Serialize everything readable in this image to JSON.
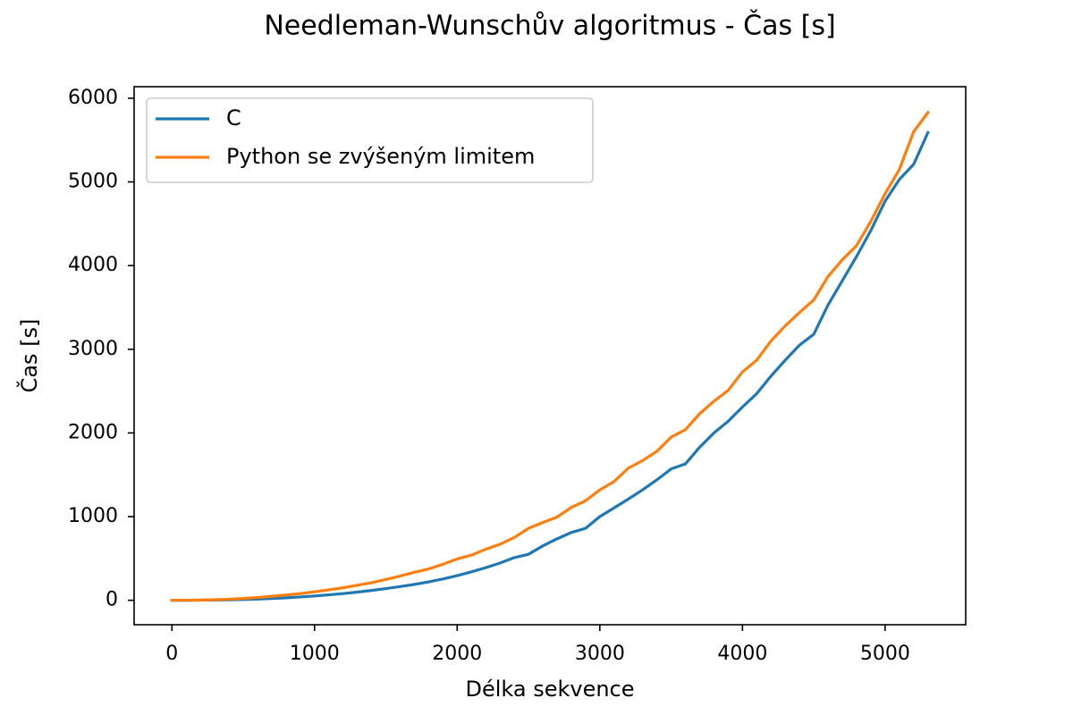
{
  "chart_data": {
    "type": "line",
    "title": "Needleman-Wunschův algoritmus - Čas [s]",
    "xlabel": "Délka sekvence",
    "ylabel": "Čas [s]",
    "xlim": [
      -265,
      5565
    ],
    "ylim": [
      -292,
      6138
    ],
    "xticks": [
      0,
      1000,
      2000,
      3000,
      4000,
      5000
    ],
    "yticks": [
      0,
      1000,
      2000,
      3000,
      4000,
      5000,
      6000
    ],
    "grid": false,
    "legend_position": "upper left",
    "series": [
      {
        "name": "C",
        "color": "#1f77b4",
        "x": [
          0,
          100,
          200,
          300,
          400,
          500,
          600,
          700,
          800,
          900,
          1000,
          1100,
          1200,
          1300,
          1400,
          1500,
          1600,
          1700,
          1800,
          1900,
          2000,
          2100,
          2200,
          2300,
          2400,
          2500,
          2600,
          2700,
          2800,
          2900,
          3000,
          3100,
          3200,
          3300,
          3400,
          3500,
          3600,
          3700,
          3800,
          3900,
          4000,
          4100,
          4200,
          4300,
          4400,
          4500,
          4600,
          4700,
          4800,
          4900,
          5000,
          5100,
          5200,
          5300
        ],
        "y": [
          0,
          0,
          1,
          3,
          5,
          10,
          15,
          22,
          30,
          40,
          52,
          65,
          80,
          98,
          118,
          140,
          164,
          190,
          220,
          255,
          295,
          340,
          390,
          445,
          510,
          550,
          650,
          735,
          810,
          860,
          1000,
          1105,
          1210,
          1320,
          1440,
          1570,
          1630,
          1830,
          2000,
          2140,
          2310,
          2470,
          2680,
          2870,
          3050,
          3180,
          3530,
          3820,
          4110,
          4420,
          4770,
          5030,
          5210,
          5590
        ]
      },
      {
        "name": "Python se zvýšeným limitem",
        "color": "#ff7f0e",
        "x": [
          0,
          100,
          200,
          300,
          400,
          500,
          600,
          700,
          800,
          900,
          1000,
          1100,
          1200,
          1300,
          1400,
          1500,
          1600,
          1700,
          1800,
          1900,
          2000,
          2100,
          2200,
          2300,
          2400,
          2500,
          2600,
          2700,
          2800,
          2900,
          3000,
          3100,
          3200,
          3300,
          3400,
          3500,
          3600,
          3700,
          3800,
          3900,
          4000,
          4100,
          4200,
          4300,
          4400,
          4500,
          4600,
          4700,
          4800,
          4900,
          5000,
          5100,
          5200,
          5300
        ],
        "y": [
          0,
          1,
          3,
          7,
          13,
          22,
          33,
          47,
          63,
          80,
          102,
          125,
          150,
          180,
          210,
          250,
          290,
          335,
          375,
          430,
          495,
          540,
          610,
          670,
          750,
          860,
          930,
          995,
          1110,
          1190,
          1320,
          1420,
          1580,
          1670,
          1780,
          1950,
          2040,
          2230,
          2380,
          2510,
          2730,
          2870,
          3100,
          3280,
          3440,
          3590,
          3870,
          4070,
          4240,
          4530,
          4860,
          5150,
          5600,
          5830
        ]
      }
    ]
  }
}
